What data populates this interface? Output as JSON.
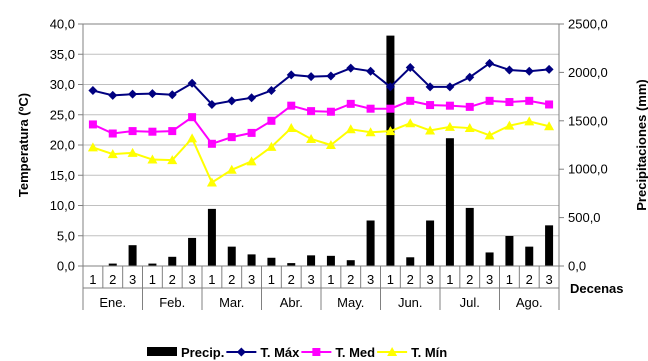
{
  "chart_data": {
    "type": "bar+line",
    "y_left": {
      "label": "Temperatura  (ºC)",
      "range": [
        0,
        40
      ],
      "ticks": [
        "0,0",
        "5,0",
        "10,0",
        "15,0",
        "20,0",
        "25,0",
        "30,0",
        "35,0",
        "40,0"
      ]
    },
    "y_right": {
      "label": "Precipitaciones  (mm)",
      "range": [
        0,
        2500
      ],
      "ticks": [
        "0,0",
        "500,0",
        "1000,0",
        "1500,0",
        "2000,0",
        "2500,0"
      ]
    },
    "x_label": "Decenas",
    "months": [
      "Ene.",
      "Feb.",
      "Mar.",
      "Abr.",
      "May.",
      "Jun.",
      "Jul.",
      "Ago."
    ],
    "decenas": [
      "1",
      "2",
      "3"
    ],
    "series": [
      {
        "name": "Precip.",
        "kind": "bar",
        "axis": "right",
        "color": "#000000",
        "values": [
          0,
          25,
          215,
          25,
          95,
          290,
          590,
          200,
          120,
          85,
          30,
          110,
          105,
          60,
          470,
          2380,
          90,
          470,
          1320,
          600,
          140,
          310,
          200,
          420
        ]
      },
      {
        "name": "T. Máx",
        "kind": "line",
        "axis": "left",
        "color": "#000080",
        "marker": "diamond",
        "values": [
          29.0,
          28.2,
          28.4,
          28.5,
          28.3,
          30.2,
          26.7,
          27.3,
          27.8,
          29.0,
          31.6,
          31.3,
          31.4,
          32.7,
          32.2,
          29.6,
          32.8,
          29.6,
          29.6,
          31.2,
          33.5,
          32.4,
          32.2,
          32.5
        ]
      },
      {
        "name": "T. Med",
        "kind": "line",
        "axis": "left",
        "color": "#ff00ff",
        "marker": "square",
        "values": [
          23.4,
          21.9,
          22.3,
          22.2,
          22.3,
          24.6,
          20.2,
          21.3,
          22.0,
          24.0,
          26.5,
          25.6,
          25.5,
          26.8,
          26.0,
          26.0,
          27.3,
          26.6,
          26.5,
          26.3,
          27.3,
          27.1,
          27.3,
          26.7
        ]
      },
      {
        "name": "T. Mín",
        "kind": "line",
        "axis": "left",
        "color": "#ffff00",
        "marker": "triangle",
        "values": [
          19.6,
          18.5,
          18.7,
          17.6,
          17.5,
          21.1,
          13.8,
          15.9,
          17.3,
          19.7,
          22.8,
          21.0,
          20.0,
          22.6,
          22.1,
          22.3,
          23.6,
          22.4,
          23.0,
          22.8,
          21.6,
          23.2,
          23.9,
          23.1
        ]
      }
    ],
    "legend": {
      "placement": "bottom"
    }
  }
}
